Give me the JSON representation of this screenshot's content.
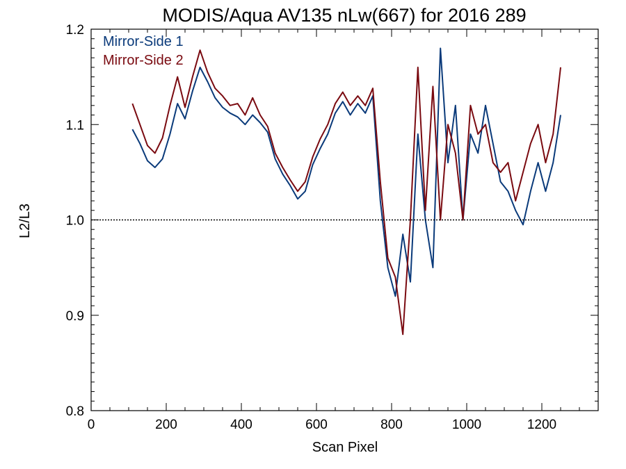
{
  "chart_data": {
    "type": "line",
    "title": "MODIS/Aqua AV135 nLw(667) for 2016 289",
    "xlabel": "Scan Pixel",
    "ylabel": "L2/L3",
    "xlim": [
      0,
      1350
    ],
    "ylim": [
      0.8,
      1.2
    ],
    "xticks": [
      0,
      200,
      400,
      600,
      800,
      1000,
      1200
    ],
    "xtick_labels": [
      "0",
      "200",
      "400",
      "600",
      "800",
      "1000",
      "1200"
    ],
    "yticks": [
      0.8,
      0.9,
      1.0,
      1.1,
      1.2
    ],
    "ytick_labels": [
      "0.8",
      "0.9",
      "1.0",
      "1.1",
      "1.2"
    ],
    "reference_line": 1.0,
    "grid": false,
    "legend_position": "top-left",
    "x": [
      110,
      130,
      150,
      170,
      190,
      210,
      230,
      250,
      270,
      290,
      310,
      330,
      350,
      370,
      390,
      410,
      430,
      450,
      470,
      490,
      510,
      530,
      550,
      570,
      590,
      610,
      630,
      650,
      670,
      690,
      710,
      730,
      750,
      770,
      790,
      810,
      830,
      850,
      870,
      890,
      910,
      930,
      950,
      970,
      990,
      1010,
      1030,
      1050,
      1070,
      1090,
      1110,
      1130,
      1150,
      1170,
      1190,
      1210,
      1230,
      1250
    ],
    "series": [
      {
        "name": "Mirror-Side 1",
        "color": "#0a3a7a",
        "values": [
          1.095,
          1.08,
          1.062,
          1.055,
          1.064,
          1.09,
          1.122,
          1.106,
          1.135,
          1.16,
          1.145,
          1.128,
          1.118,
          1.112,
          1.108,
          1.1,
          1.11,
          1.102,
          1.092,
          1.064,
          1.048,
          1.036,
          1.022,
          1.03,
          1.058,
          1.075,
          1.09,
          1.112,
          1.124,
          1.11,
          1.122,
          1.112,
          1.13,
          1.02,
          0.95,
          0.92,
          0.985,
          0.935,
          1.09,
          1.0,
          0.95,
          1.18,
          1.06,
          1.12,
          1.0,
          1.09,
          1.07,
          1.12,
          1.08,
          1.04,
          1.03,
          1.01,
          0.995,
          1.03,
          1.06,
          1.03,
          1.06,
          1.11
        ]
      },
      {
        "name": "Mirror-Side 2",
        "color": "#7a0a10",
        "values": [
          1.122,
          1.1,
          1.078,
          1.07,
          1.086,
          1.12,
          1.15,
          1.118,
          1.15,
          1.178,
          1.155,
          1.138,
          1.13,
          1.12,
          1.122,
          1.11,
          1.128,
          1.11,
          1.098,
          1.07,
          1.055,
          1.042,
          1.03,
          1.04,
          1.066,
          1.085,
          1.1,
          1.122,
          1.134,
          1.12,
          1.13,
          1.12,
          1.138,
          1.04,
          0.96,
          0.94,
          0.88,
          1.0,
          1.16,
          1.01,
          1.14,
          1.0,
          1.1,
          1.07,
          1.0,
          1.12,
          1.09,
          1.1,
          1.06,
          1.05,
          1.06,
          1.02,
          1.05,
          1.08,
          1.1,
          1.06,
          1.09,
          1.16
        ]
      }
    ]
  }
}
